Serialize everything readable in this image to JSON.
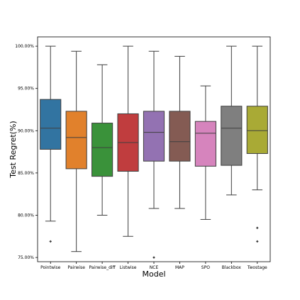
{
  "chart_data": {
    "type": "box",
    "title": "",
    "xlabel": "Model",
    "ylabel": "Test Regret(%)",
    "ylim": [
      74.5,
      101.1
    ],
    "y_ticks": [
      75,
      80,
      85,
      90,
      95,
      100
    ],
    "y_tick_labels": [
      "75.00%",
      "80.00%",
      "85.00%",
      "90.00%",
      "95.00%",
      "100.00%"
    ],
    "grid": false,
    "legend": "none",
    "categories": [
      "Pointwise",
      "Pairwise",
      "Pairwise_diff",
      "Listwise",
      "NCE",
      "MAP",
      "SPO",
      "Blackbox",
      "Twostage"
    ],
    "boxes": [
      {
        "name": "Pointwise",
        "color": "#3274a1",
        "whisker_low": 79.3,
        "q1": 87.8,
        "median": 90.3,
        "q3": 93.7,
        "whisker_high": 100.0,
        "outliers": [
          76.9
        ]
      },
      {
        "name": "Pairwise",
        "color": "#e1812c",
        "whisker_low": 75.7,
        "q1": 85.5,
        "median": 89.2,
        "q3": 92.3,
        "whisker_high": 99.4,
        "outliers": []
      },
      {
        "name": "Pairwise_diff",
        "color": "#3a923a",
        "whisker_low": 80.0,
        "q1": 84.6,
        "median": 88.0,
        "q3": 90.9,
        "whisker_high": 97.8,
        "outliers": []
      },
      {
        "name": "Listwise",
        "color": "#c03d3e",
        "whisker_low": 77.5,
        "q1": 85.2,
        "median": 88.6,
        "q3": 92.0,
        "whisker_high": 100.0,
        "outliers": []
      },
      {
        "name": "NCE",
        "color": "#9372b2",
        "whisker_low": 80.8,
        "q1": 86.4,
        "median": 89.8,
        "q3": 92.3,
        "whisker_high": 99.4,
        "outliers": [
          75.0
        ]
      },
      {
        "name": "MAP",
        "color": "#845b53",
        "whisker_low": 80.8,
        "q1": 86.4,
        "median": 88.7,
        "q3": 92.3,
        "whisker_high": 98.8,
        "outliers": []
      },
      {
        "name": "SPO",
        "color": "#d684bd",
        "whisker_low": 79.5,
        "q1": 85.8,
        "median": 89.7,
        "q3": 91.1,
        "whisker_high": 95.3,
        "outliers": []
      },
      {
        "name": "Blackbox",
        "color": "#7f7f7f",
        "whisker_low": 82.4,
        "q1": 85.9,
        "median": 90.3,
        "q3": 92.9,
        "whisker_high": 100.0,
        "outliers": []
      },
      {
        "name": "Twostage",
        "color": "#a9aa35",
        "whisker_low": 83.0,
        "q1": 87.3,
        "median": 90.0,
        "q3": 92.9,
        "whisker_high": 100.0,
        "outliers": [
          78.5,
          76.9
        ]
      }
    ]
  }
}
